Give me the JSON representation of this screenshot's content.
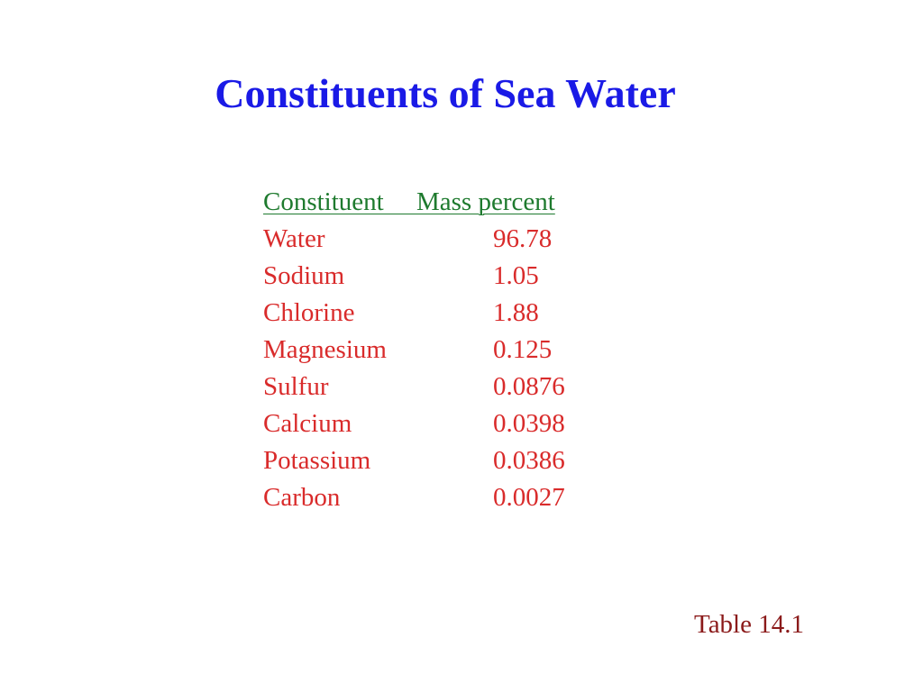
{
  "title": "Constituents of Sea Water",
  "table": {
    "header": "Constituent     Mass percent",
    "rows": [
      {
        "constituent": "Water",
        "mass_percent": "96.78"
      },
      {
        "constituent": "Sodium",
        "mass_percent": "1.05"
      },
      {
        "constituent": "Chlorine",
        "mass_percent": "1.88"
      },
      {
        "constituent": "Magnesium",
        "mass_percent": "0.125"
      },
      {
        "constituent": "Sulfur",
        "mass_percent": "0.0876"
      },
      {
        "constituent": "Calcium",
        "mass_percent": "0.0398"
      },
      {
        "constituent": "Potassium",
        "mass_percent": "0.0386"
      },
      {
        "constituent": "Carbon",
        "mass_percent": "0.0027"
      }
    ]
  },
  "caption": "Table 14.1",
  "colors": {
    "title": "#1a1ae6",
    "header": "#1e7a2e",
    "rows": "#d92b2b",
    "caption": "#8b1a1a"
  }
}
